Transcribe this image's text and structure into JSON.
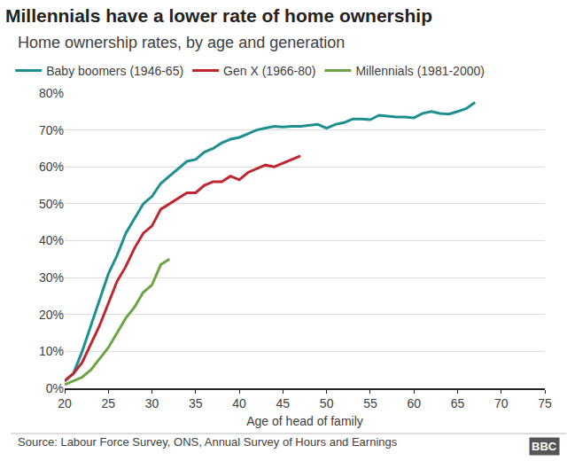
{
  "chart_data": {
    "type": "line",
    "title": "Millennials have a lower rate of home ownership",
    "subtitle": "Home ownership rates, by age and generation",
    "x_label": "Age of head of family",
    "source": "Source: Labour Force Survey, ONS, Annual Survey of Hours and Earnings",
    "annotations": [
      "BBC"
    ],
    "legend": "top left",
    "grid": true,
    "marker": "none",
    "line_style": "solid",
    "xlim": [
      20,
      75
    ],
    "xticks": [
      20,
      25,
      30,
      35,
      40,
      45,
      50,
      55,
      60,
      65,
      70,
      75
    ],
    "ylim": [
      0,
      80
    ],
    "yticks": [
      {
        "value": 0,
        "label": "0%"
      },
      {
        "value": 10,
        "label": "10%"
      },
      {
        "value": 20,
        "label": "20%"
      },
      {
        "value": 30,
        "label": "30%"
      },
      {
        "value": 40,
        "label": "40%"
      },
      {
        "value": 50,
        "label": "50%"
      },
      {
        "value": 60,
        "label": "60%"
      },
      {
        "value": 70,
        "label": "70%"
      },
      {
        "value": 80,
        "label": "80%"
      }
    ],
    "series": [
      {
        "name": "Baby boomers (1946-65)",
        "color": "#1d8f8f",
        "x": [
          20,
          21,
          22,
          23,
          24,
          25,
          26,
          27,
          28,
          29,
          30,
          31,
          32,
          33,
          34,
          35,
          36,
          37,
          38,
          39,
          40,
          41,
          42,
          43,
          44,
          45,
          46,
          47,
          48,
          49,
          50,
          51,
          52,
          53,
          54,
          55,
          56,
          57,
          58,
          59,
          60,
          61,
          62,
          63,
          64,
          65,
          66,
          67
        ],
        "values": [
          2,
          4,
          10,
          17,
          24,
          31,
          36,
          42,
          46,
          50,
          52,
          55.5,
          57.5,
          59.5,
          61.5,
          62,
          64,
          65,
          66.5,
          67.5,
          68,
          69,
          70,
          70.5,
          71,
          70.8,
          71,
          71,
          71.2,
          71.5,
          70.5,
          71.5,
          72,
          73,
          73,
          72.8,
          74,
          73.8,
          73.5,
          73.5,
          73.3,
          74.5,
          75,
          74.5,
          74.3,
          75,
          75.8,
          77.5
        ]
      },
      {
        "name": "Gen X (1966-80)",
        "color": "#c0262f",
        "x": [
          20,
          21,
          22,
          23,
          24,
          25,
          26,
          27,
          28,
          29,
          30,
          31,
          32,
          33,
          34,
          35,
          36,
          37,
          38,
          39,
          40,
          41,
          42,
          43,
          44,
          45,
          46,
          47
        ],
        "values": [
          2,
          4,
          7,
          12,
          17,
          23,
          29,
          33,
          38,
          42,
          44,
          48.5,
          50,
          51.5,
          53,
          53,
          55,
          56,
          56,
          57.5,
          56.5,
          58.5,
          59.5,
          60.5,
          60,
          61,
          62,
          63
        ]
      },
      {
        "name": "Millennials (1981-2000)",
        "color": "#6ca443",
        "x": [
          20,
          21,
          22,
          23,
          24,
          25,
          26,
          27,
          28,
          29,
          30,
          31,
          32
        ],
        "values": [
          1,
          2,
          3,
          5,
          8,
          11,
          15,
          19,
          22,
          26,
          28,
          33.5,
          35
        ]
      }
    ]
  }
}
